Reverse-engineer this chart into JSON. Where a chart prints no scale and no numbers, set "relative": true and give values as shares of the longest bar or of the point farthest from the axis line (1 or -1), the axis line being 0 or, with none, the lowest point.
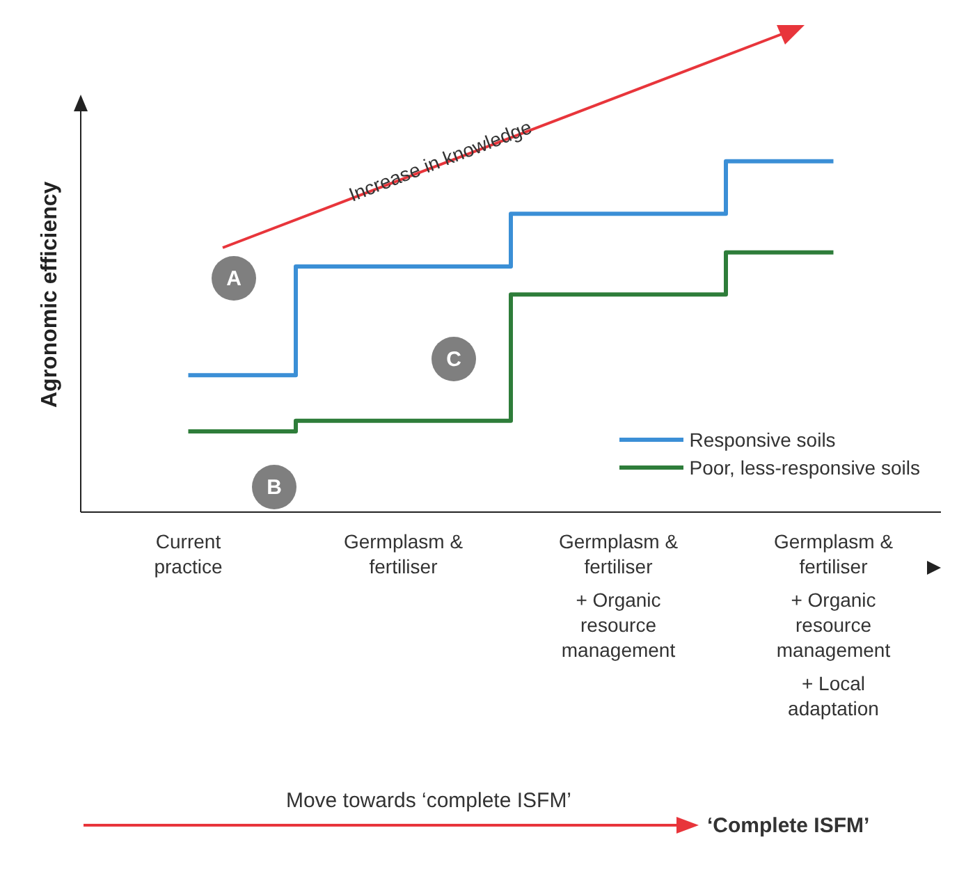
{
  "chart_data": {
    "type": "step",
    "relative": true,
    "ylabel": "Agronomic efficiency",
    "categories": [
      "Current practice",
      "Germplasm & fertiliser",
      "Germplasm & fertiliser\n+ Organic resource management",
      "Germplasm & fertiliser\n+ Organic resource management\n+ Local adaptation"
    ],
    "series": [
      {
        "name": "Responsive soils",
        "color": "#3b8fd6",
        "values": [
          0.39,
          0.7,
          0.85,
          1
        ]
      },
      {
        "name": "Poor, less-responsive soils",
        "color": "#2e7d3a",
        "values": [
          0.23,
          0.26,
          0.62,
          0.74
        ]
      }
    ],
    "legend": "bottom right",
    "grid": false,
    "marker": "none",
    "line_style": "solid",
    "annotations": [
      "Increase in knowledge",
      "A",
      "B",
      "C",
      "Move towards ‘complete ISFM’",
      "‘Complete ISFM’"
    ]
  }
}
